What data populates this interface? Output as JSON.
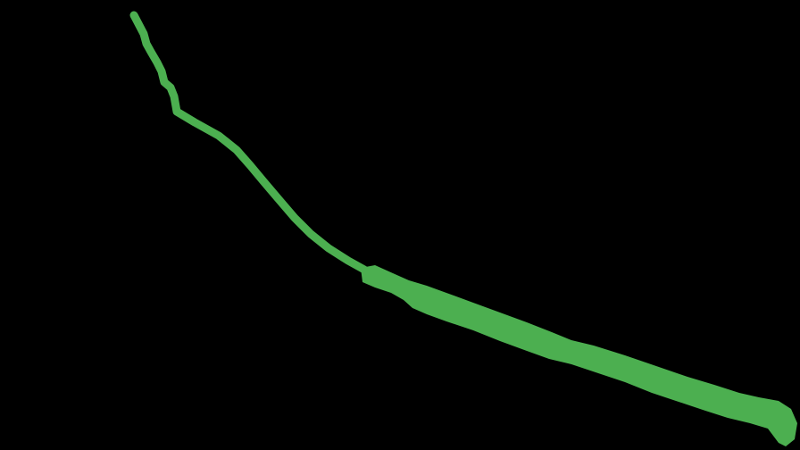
{
  "stroke": {
    "color": "#4caf50",
    "shape": "downward-curving-brush-stroke"
  }
}
